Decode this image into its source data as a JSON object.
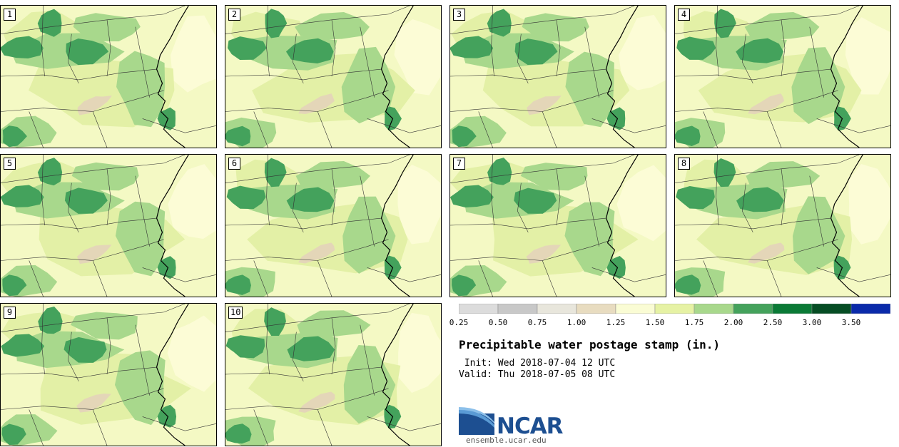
{
  "panels": [
    {
      "label": "1"
    },
    {
      "label": "2"
    },
    {
      "label": "3"
    },
    {
      "label": "4"
    },
    {
      "label": "5"
    },
    {
      "label": "6"
    },
    {
      "label": "7"
    },
    {
      "label": "8"
    },
    {
      "label": "9"
    },
    {
      "label": "10"
    }
  ],
  "colorbar": {
    "levels": [
      "0.25",
      "0.50",
      "0.75",
      "1.00",
      "1.25",
      "1.50",
      "1.75",
      "2.00",
      "2.50",
      "3.00",
      "3.50"
    ],
    "colors": [
      "#dcdcdc",
      "#c8c8c8",
      "#e8e6dc",
      "#e8dcc0",
      "#fafcd4",
      "#e6f2a4",
      "#a8d88c",
      "#44a25c",
      "#0a7a36",
      "#064d24",
      "#0a2aaa"
    ]
  },
  "map_colors": {
    "background": "#f4f9c4",
    "light": "#e3f0a6",
    "medium": "#a8d88c",
    "dark": "#44a25c",
    "tan": "#e4d6b8",
    "cream": "#fcfcd6",
    "border": "#333333",
    "coast": "#000000"
  },
  "title": "Precipitable water postage stamp (in.)",
  "init_text": " Init: Wed 2018-07-04 12 UTC",
  "valid_text": "Valid: Thu 2018-07-05 08 UTC",
  "logo": {
    "name": "NCAR",
    "url": "ensemble.ucar.edu",
    "primary_color": "#1d4f91",
    "swoosh_color": "#5a9bd5"
  }
}
